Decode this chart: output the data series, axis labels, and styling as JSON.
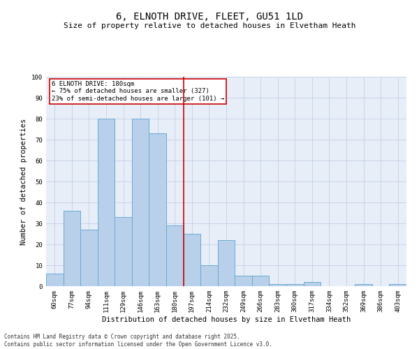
{
  "title_line1": "6, ELNOTH DRIVE, FLEET, GU51 1LD",
  "title_line2": "Size of property relative to detached houses in Elvetham Heath",
  "xlabel": "Distribution of detached houses by size in Elvetham Heath",
  "ylabel": "Number of detached properties",
  "categories": [
    "60sqm",
    "77sqm",
    "94sqm",
    "111sqm",
    "129sqm",
    "146sqm",
    "163sqm",
    "180sqm",
    "197sqm",
    "214sqm",
    "232sqm",
    "249sqm",
    "266sqm",
    "283sqm",
    "300sqm",
    "317sqm",
    "334sqm",
    "352sqm",
    "369sqm",
    "386sqm",
    "403sqm"
  ],
  "values": [
    6,
    36,
    27,
    80,
    33,
    80,
    73,
    29,
    25,
    10,
    22,
    5,
    5,
    1,
    1,
    2,
    0,
    0,
    1,
    0,
    1
  ],
  "bar_color": "#b8d0ea",
  "bar_edgecolor": "#6aaad4",
  "vline_color": "#cc0000",
  "ylim": [
    0,
    100
  ],
  "yticks": [
    0,
    10,
    20,
    30,
    40,
    50,
    60,
    70,
    80,
    90,
    100
  ],
  "annotation_title": "6 ELNOTH DRIVE: 180sqm",
  "annotation_line1": "← 75% of detached houses are smaller (327)",
  "annotation_line2": "23% of semi-detached houses are larger (101) →",
  "annotation_box_color": "#cc0000",
  "grid_color": "#c8d4e8",
  "background_color": "#e8eef8",
  "footnote_line1": "Contains HM Land Registry data © Crown copyright and database right 2025.",
  "footnote_line2": "Contains public sector information licensed under the Open Government Licence v3.0.",
  "title_fontsize": 10,
  "subtitle_fontsize": 8,
  "tick_fontsize": 6.5,
  "label_fontsize": 7.5,
  "annotation_fontsize": 6.5,
  "footnote_fontsize": 5.5
}
